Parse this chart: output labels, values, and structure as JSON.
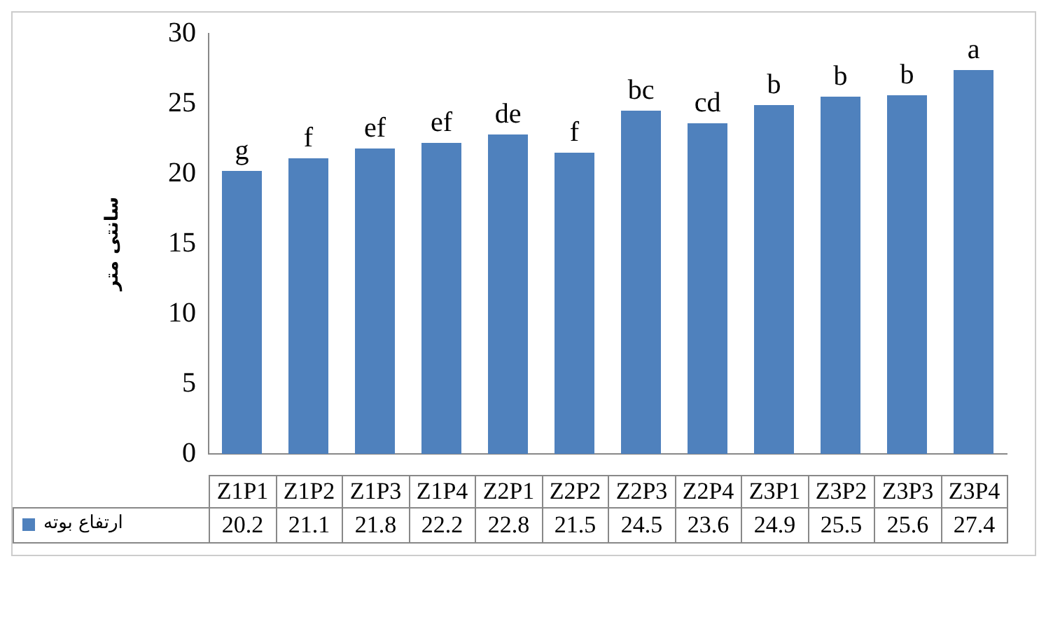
{
  "chart_data": {
    "type": "bar",
    "ylabel": "سانتی متر",
    "categories": [
      "Z1P1",
      "Z1P2",
      "Z1P3",
      "Z1P4",
      "Z2P1",
      "Z2P2",
      "Z2P3",
      "Z2P4",
      "Z3P1",
      "Z3P2",
      "Z3P3",
      "Z3P4"
    ],
    "series": [
      {
        "name": "ارتفاع بوته",
        "color": "#4f81bd",
        "values": [
          20.2,
          21.1,
          21.8,
          22.2,
          22.8,
          21.5,
          24.5,
          23.6,
          24.9,
          25.5,
          25.6,
          27.4
        ]
      }
    ],
    "ylim": [
      0,
      30
    ],
    "yticks": [
      0,
      5,
      10,
      15,
      20,
      25,
      30
    ],
    "grid": false,
    "legend": "bottom",
    "data_labels": true,
    "annotations": [
      {
        "text": "g",
        "x": "Z1P1",
        "y": 20.2
      },
      {
        "text": "f",
        "x": "Z1P2",
        "y": 21.1
      },
      {
        "text": "ef",
        "x": "Z1P3",
        "y": 21.8
      },
      {
        "text": "ef",
        "x": "Z1P4",
        "y": 22.2
      },
      {
        "text": "de",
        "x": "Z2P1",
        "y": 22.8
      },
      {
        "text": "f",
        "x": "Z2P2",
        "y": 21.5
      },
      {
        "text": "bc",
        "x": "Z2P3",
        "y": 24.5
      },
      {
        "text": "cd",
        "x": "Z2P4",
        "y": 23.6
      },
      {
        "text": "b",
        "x": "Z3P1",
        "y": 24.9
      },
      {
        "text": "b",
        "x": "Z3P2",
        "y": 25.5
      },
      {
        "text": "b",
        "x": "Z3P3",
        "y": 25.6
      },
      {
        "text": "a",
        "x": "Z3P4",
        "y": 27.4
      }
    ]
  }
}
